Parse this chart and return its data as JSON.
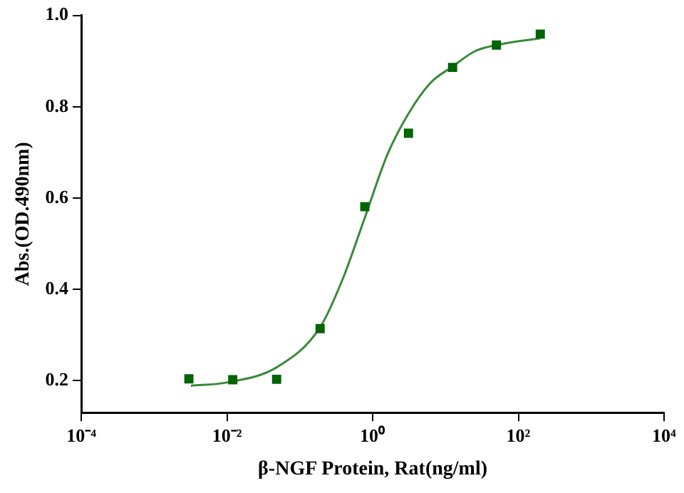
{
  "chart_data": {
    "type": "scatter",
    "xlabel": "β-NGF Protein, Rat(ng/ml)",
    "ylabel": "Abs.(OD.490nm)",
    "log": "x",
    "grid": false,
    "legend": false,
    "xlim": [
      0.0001,
      10000
    ],
    "xticks": [
      {
        "value": 0.0001,
        "label": "10⁻⁴"
      },
      {
        "value": 0.01,
        "label": "10⁻²"
      },
      {
        "value": 1,
        "label": "10⁰"
      },
      {
        "value": 100,
        "label": "10²"
      },
      {
        "value": 10000,
        "label": "10⁴"
      }
    ],
    "ylim": [
      0.13,
      1.0
    ],
    "yticks": [
      0.2,
      0.4,
      0.6,
      0.8,
      {
        "value": 1,
        "label": "1.0"
      }
    ],
    "series": [
      {
        "marker": "square",
        "color": "#006400",
        "x": [
          0.003,
          0.012,
          0.048,
          0.19,
          0.78,
          3.1,
          12.5,
          50,
          200
        ],
        "values": [
          0.204,
          0.202,
          0.203,
          0.314,
          0.581,
          0.742,
          0.886,
          0.935,
          0.959
        ]
      },
      {
        "type": "line",
        "marker": "none",
        "line_style": "solid",
        "color": "#3a8a3a",
        "x": [
          0.0032,
          0.01,
          0.049,
          0.19,
          0.4,
          0.78,
          1.6,
          3.1,
          6.2,
          12.5,
          25,
          50,
          200
        ],
        "values": [
          0.189,
          0.196,
          0.23,
          0.317,
          0.428,
          0.557,
          0.696,
          0.785,
          0.852,
          0.888,
          0.921,
          0.935,
          0.95
        ]
      }
    ]
  }
}
